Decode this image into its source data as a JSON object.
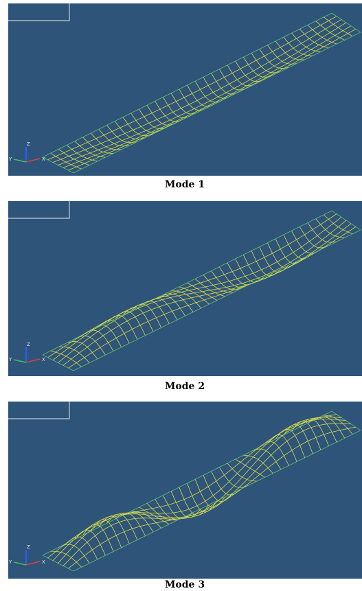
{
  "panels": [
    {
      "caption": "Mode 1",
      "triad": {
        "z": "Z",
        "x": "X",
        "y": "Y"
      }
    },
    {
      "caption": "Mode 2",
      "triad": {
        "z": "Z",
        "x": "X",
        "y": "Y"
      }
    },
    {
      "caption": "Mode 3",
      "triad": {
        "z": "Z",
        "x": "X",
        "y": "Y"
      }
    }
  ]
}
